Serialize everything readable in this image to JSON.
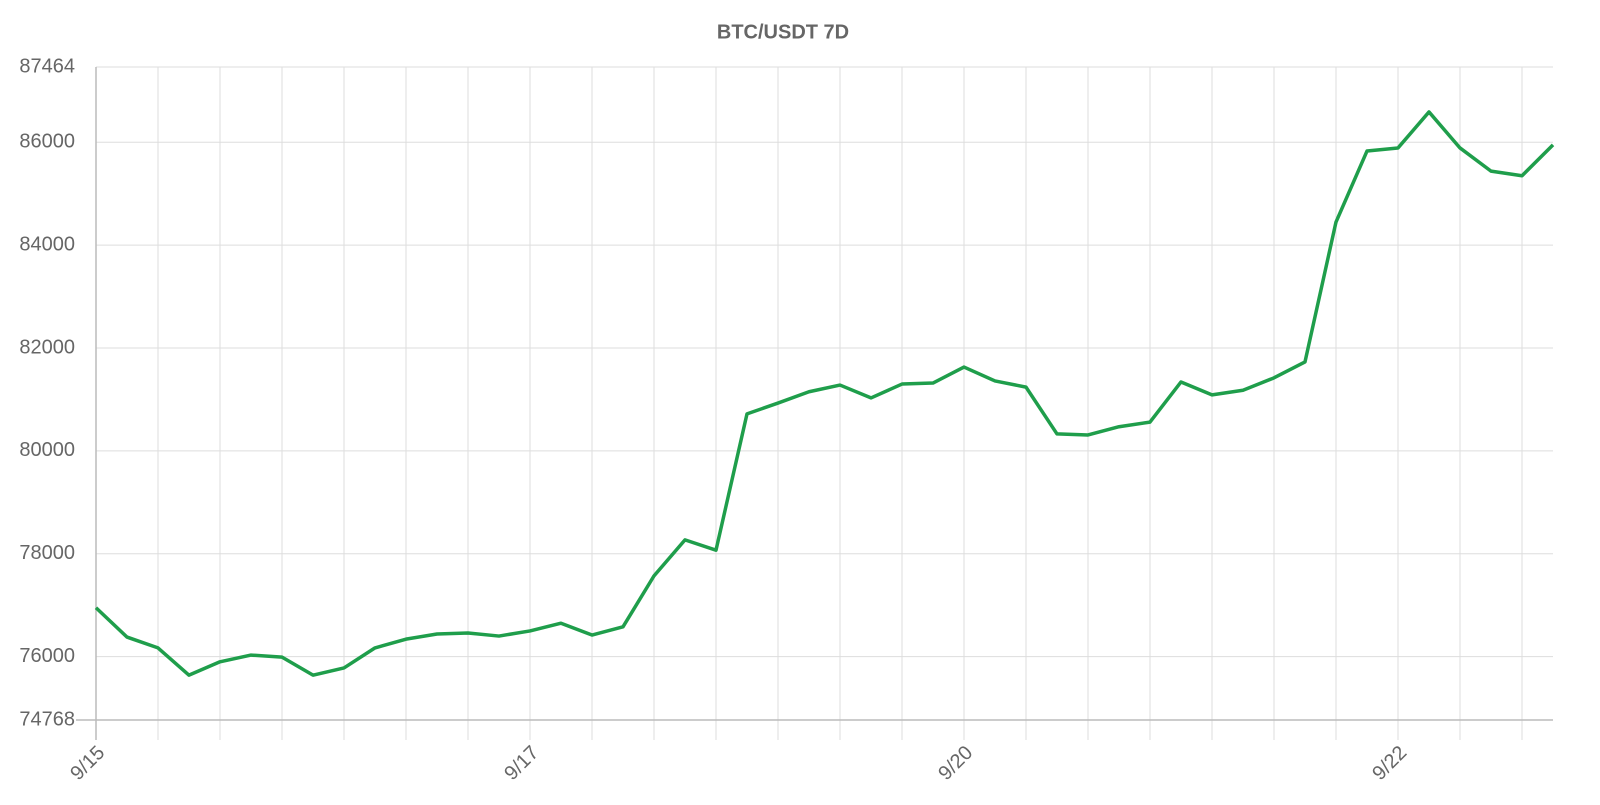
{
  "chart_data": {
    "type": "line",
    "title": "BTC/USDT 7D",
    "categories": [
      "9/15",
      null,
      null,
      null,
      null,
      null,
      null,
      null,
      null,
      null,
      null,
      null,
      null,
      null,
      "9/17",
      null,
      null,
      null,
      null,
      null,
      null,
      null,
      null,
      null,
      null,
      null,
      null,
      null,
      "9/20",
      null,
      null,
      null,
      null,
      null,
      null,
      null,
      null,
      null,
      null,
      null,
      null,
      null,
      "9/22",
      null,
      null,
      null,
      null,
      null
    ],
    "series": [
      {
        "color": "#1f9e4b",
        "values": [
          76950,
          76380,
          76170,
          75640,
          75900,
          76030,
          75990,
          75640,
          75780,
          76170,
          76340,
          76440,
          76460,
          76400,
          76500,
          76650,
          76420,
          76580,
          77570,
          78270,
          78070,
          80720,
          80930,
          81150,
          81280,
          81030,
          81300,
          81320,
          81630,
          81360,
          81240,
          80330,
          80310,
          80470,
          80560,
          81340,
          81090,
          81180,
          81420,
          81730,
          84450,
          85830,
          85890,
          86590,
          85890,
          85440,
          85350,
          85950
        ]
      }
    ],
    "ylim": [
      74768,
      87464
    ],
    "yticks": [
      74768,
      76000,
      78000,
      80000,
      82000,
      84000,
      86000,
      87464
    ],
    "grid": true
  }
}
